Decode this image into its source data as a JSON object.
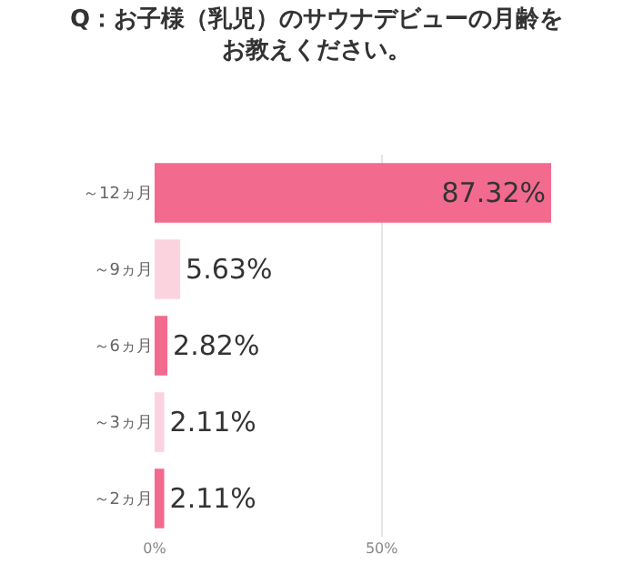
{
  "chart_data": {
    "type": "bar",
    "orientation": "horizontal",
    "title": "Q：お子様（乳児）のサウナデビューの月齢をお教えください。",
    "categories": [
      "～12ヵ月",
      "～9ヵ月",
      "～6ヵ月",
      "～3ヵ月",
      "～2ヵ月"
    ],
    "values": [
      87.32,
      5.63,
      2.82,
      2.11,
      2.11
    ],
    "value_labels": [
      "87.32%",
      "5.63%",
      "2.82%",
      "2.11%",
      "2.11%"
    ],
    "colors": [
      "#f26a8d",
      "#fbd3de",
      "#f26a8d",
      "#fbd3de",
      "#f26a8d"
    ],
    "xlim": [
      0,
      87.32
    ],
    "xticks": [
      {
        "value": 0,
        "label": "0%"
      },
      {
        "value": 50,
        "label": "50%"
      }
    ],
    "grid": "x",
    "legend": false
  }
}
